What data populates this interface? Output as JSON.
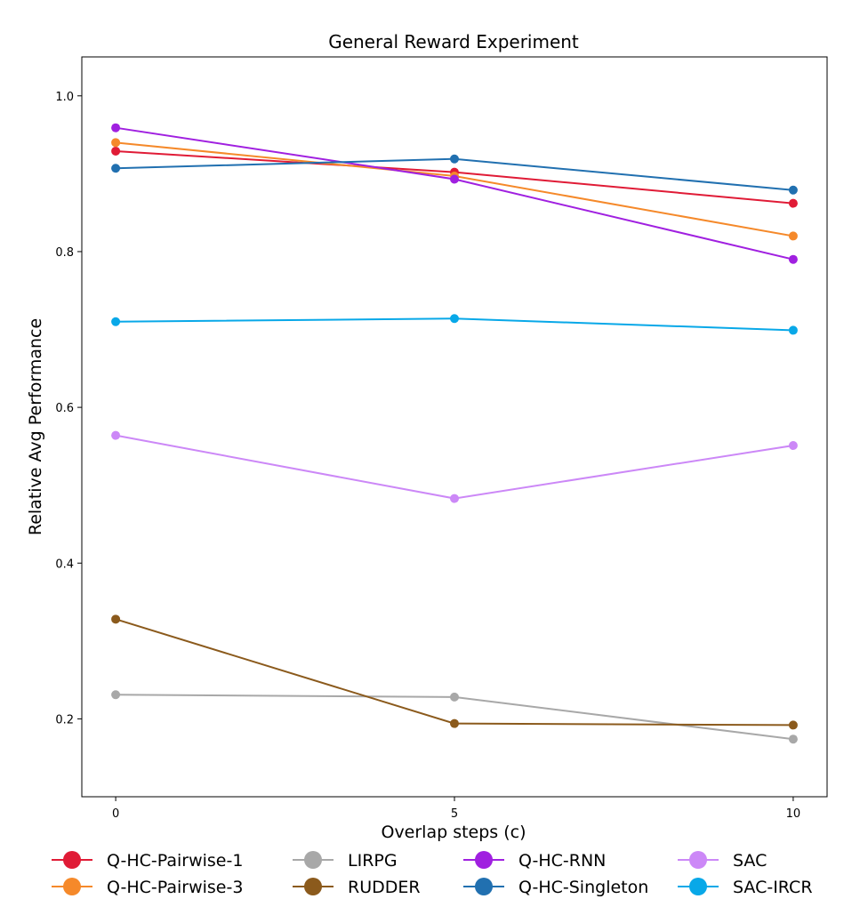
{
  "chart_data": {
    "type": "line",
    "title": "General Reward Experiment",
    "xlabel": "Overlap steps (c)",
    "ylabel": "Relative Avg Performance",
    "x": [
      0,
      5,
      10
    ],
    "x_ticks": [
      "0",
      "5",
      "10"
    ],
    "y_ticks": [
      "0.2",
      "0.4",
      "0.6",
      "0.8",
      "1.0"
    ],
    "y_tick_values": [
      0.2,
      0.4,
      0.6,
      0.8,
      1.0
    ],
    "xlim": [
      -0.5,
      10.5
    ],
    "ylim": [
      0.1,
      1.05
    ],
    "grid": false,
    "legend_position": "bottom",
    "series": [
      {
        "name": "Q-HC-Pairwise-1",
        "color": "#e01b36",
        "values": [
          0.929,
          0.902,
          0.862
        ]
      },
      {
        "name": "Q-HC-Pairwise-3",
        "color": "#f5892a",
        "values": [
          0.94,
          0.897,
          0.82
        ]
      },
      {
        "name": "LIRPG",
        "color": "#a8a8a8",
        "values": [
          0.231,
          0.228,
          0.174
        ]
      },
      {
        "name": "RUDDER",
        "color": "#8b5a1c",
        "values": [
          0.328,
          0.194,
          0.192
        ]
      },
      {
        "name": "Q-HC-RNN",
        "color": "#a020e0",
        "values": [
          0.959,
          0.893,
          0.79
        ]
      },
      {
        "name": "Q-HC-Singleton",
        "color": "#2170b0",
        "values": [
          0.907,
          0.919,
          0.879
        ]
      },
      {
        "name": "SAC",
        "color": "#cc88f7",
        "values": [
          0.564,
          0.483,
          0.551
        ]
      },
      {
        "name": "SAC-IRCR",
        "color": "#08a8e8",
        "values": [
          0.71,
          0.714,
          0.699
        ]
      }
    ]
  }
}
